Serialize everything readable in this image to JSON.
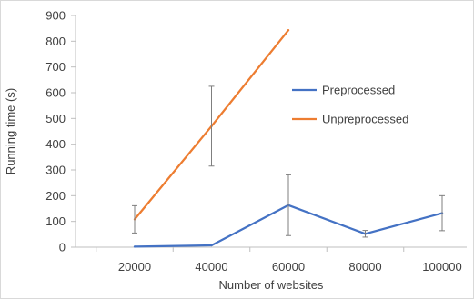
{
  "chart_data": {
    "type": "line",
    "xlabel": "Number of websites",
    "ylabel": "Running time (s)",
    "ylim": [
      0,
      900
    ],
    "yticks": [
      0,
      100,
      200,
      300,
      400,
      500,
      600,
      700,
      800,
      900
    ],
    "categories": [
      "20000",
      "40000",
      "60000",
      "80000",
      "100000"
    ],
    "grid": false,
    "legend": "right",
    "series": [
      {
        "name": "Preprocessed",
        "color": "#4472c4",
        "points": [
          {
            "x": 20000,
            "y": 2
          },
          {
            "x": 40000,
            "y": 7
          },
          {
            "x": 60000,
            "y": 163,
            "err": 118
          },
          {
            "x": 80000,
            "y": 52,
            "err": 13
          },
          {
            "x": 100000,
            "y": 132,
            "err": 68
          }
        ]
      },
      {
        "name": "Unpreprocessed",
        "color": "#ed7d31",
        "points": [
          {
            "x": 20000,
            "y": 108,
            "err": 53
          },
          {
            "x": 40000,
            "y": 470,
            "err": 155
          },
          {
            "x": 60000,
            "y": 843
          }
        ]
      }
    ]
  }
}
